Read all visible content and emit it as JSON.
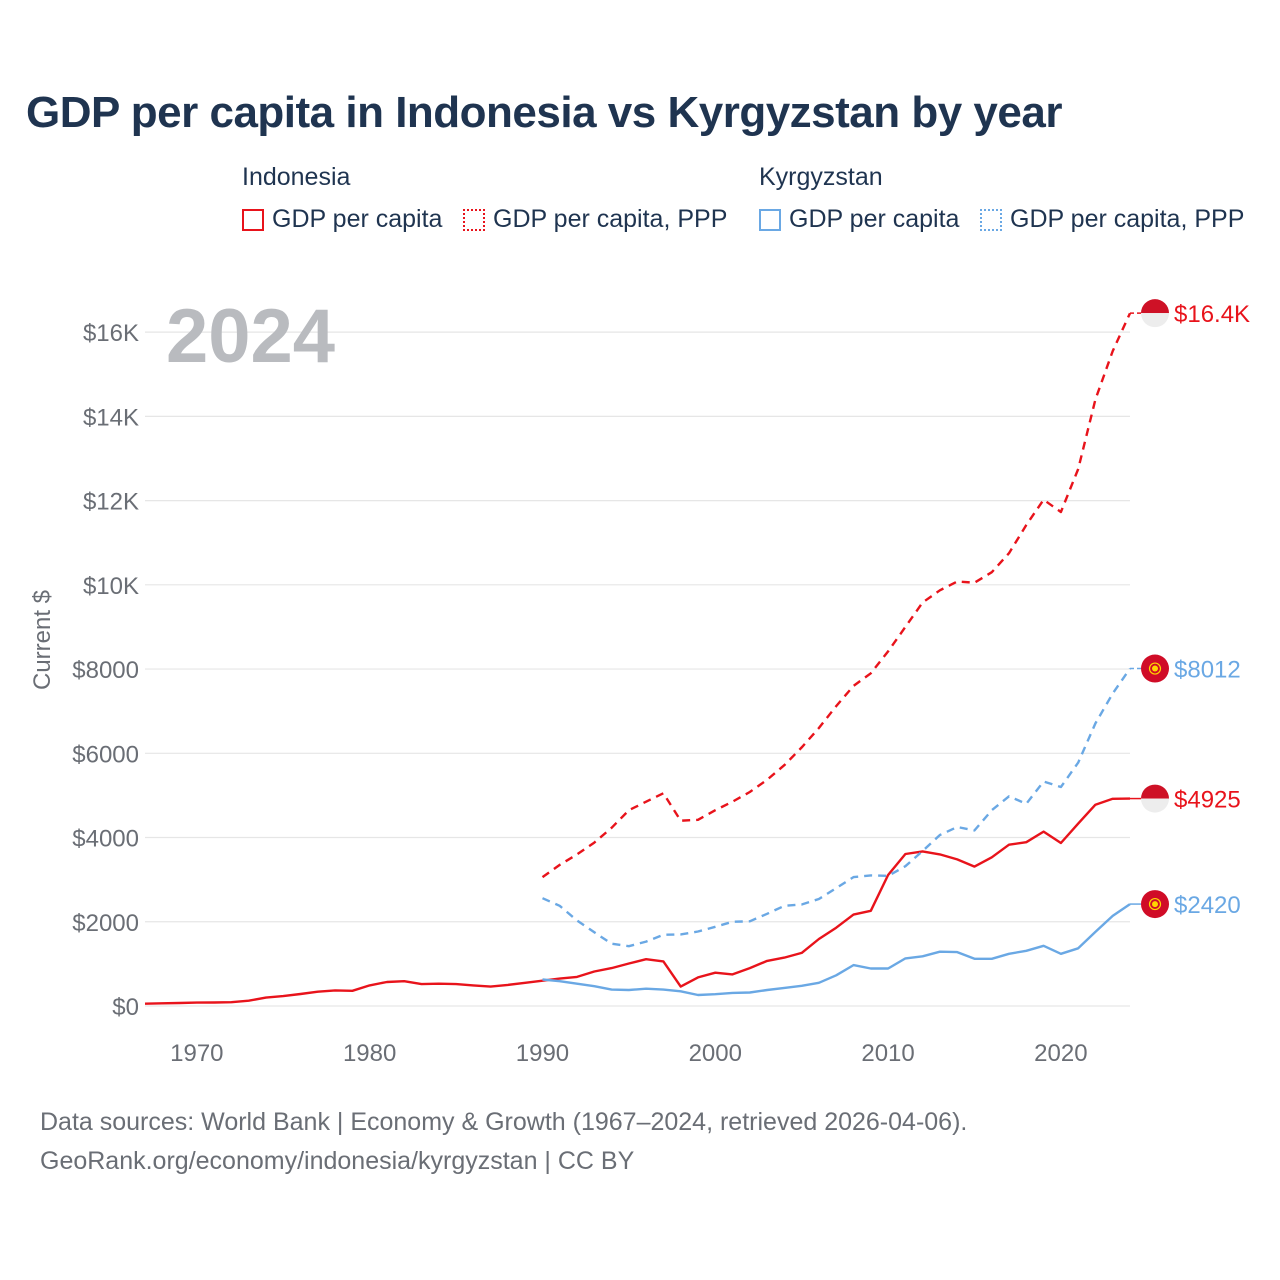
{
  "title": "GDP per capita in Indonesia vs Kyrgyzstan by year",
  "legend": {
    "indonesia": {
      "group": "Indonesia",
      "items": [
        "GDP per capita",
        "GDP per capita, PPP"
      ]
    },
    "kyrgyzstan": {
      "group": "Kyrgyzstan",
      "items": [
        "GDP per capita",
        "GDP per capita, PPP"
      ]
    }
  },
  "colors": {
    "indonesia": "#e8131b",
    "kyrgyzstan": "#6aa8e4",
    "grid": "#e6e6e6",
    "axis_text": "#6a6e75",
    "year_watermark": "#b9bbbf"
  },
  "footer": {
    "line1": "Data sources: World Bank | Economy & Growth (1967–2024, retrieved 2026-04-06).",
    "line2": "GeoRank.org/economy/indonesia/kyrgyzstan | CC BY"
  },
  "chart_data": {
    "type": "line",
    "title": "GDP per capita in Indonesia vs Kyrgyzstan by year",
    "ylabel": "Current $",
    "xlabel": "",
    "year_label": "2024",
    "xlim": [
      1967,
      2024
    ],
    "ylim": [
      0,
      17000
    ],
    "x_ticks": [
      1970,
      1980,
      1990,
      2000,
      2010,
      2020
    ],
    "x_tick_labels": [
      "1970",
      "1980",
      "1990",
      "2000",
      "2010",
      "2020"
    ],
    "y_ticks": [
      0,
      2000,
      4000,
      6000,
      8000,
      10000,
      12000,
      14000,
      16000
    ],
    "y_tick_labels": [
      "$0",
      "$2000",
      "$4000",
      "$6000",
      "$8000",
      "$10K",
      "$12K",
      "$14K",
      "$16K"
    ],
    "series": [
      {
        "name": "Indonesia GDP per capita",
        "country": "Indonesia",
        "style": "solid",
        "color": "#e8131b",
        "end_label": "$4925",
        "x": [
          1967,
          1968,
          1969,
          1970,
          1971,
          1972,
          1973,
          1974,
          1975,
          1976,
          1977,
          1978,
          1979,
          1980,
          1981,
          1982,
          1983,
          1984,
          1985,
          1986,
          1987,
          1988,
          1989,
          1990,
          1991,
          1992,
          1993,
          1994,
          1995,
          1996,
          1997,
          1998,
          1999,
          2000,
          2001,
          2002,
          2003,
          2004,
          2005,
          2006,
          2007,
          2008,
          2009,
          2010,
          2011,
          2012,
          2013,
          2014,
          2015,
          2016,
          2017,
          2018,
          2019,
          2020,
          2021,
          2022,
          2023,
          2024
        ],
        "y": [
          55,
          65,
          72,
          80,
          83,
          90,
          125,
          200,
          235,
          285,
          340,
          370,
          360,
          490,
          570,
          590,
          520,
          530,
          520,
          490,
          460,
          500,
          550,
          600,
          650,
          690,
          820,
          900,
          1010,
          1110,
          1060,
          460,
          680,
          790,
          750,
          900,
          1070,
          1150,
          1260,
          1590,
          1860,
          2170,
          2260,
          3110,
          3610,
          3670,
          3600,
          3480,
          3310,
          3530,
          3830,
          3890,
          4140,
          3870,
          4330,
          4780,
          4920,
          4925
        ]
      },
      {
        "name": "Indonesia GDP per capita, PPP",
        "country": "Indonesia",
        "style": "dashed",
        "color": "#e8131b",
        "end_label": "$16.4K",
        "x": [
          1990,
          1991,
          1992,
          1993,
          1994,
          1995,
          1996,
          1997,
          1998,
          1999,
          2000,
          2001,
          2002,
          2003,
          2004,
          2005,
          2006,
          2007,
          2008,
          2009,
          2010,
          2011,
          2012,
          2013,
          2014,
          2015,
          2016,
          2017,
          2018,
          2019,
          2020,
          2021,
          2022,
          2023,
          2024
        ],
        "y": [
          3060,
          3350,
          3600,
          3880,
          4230,
          4650,
          4850,
          5050,
          4400,
          4420,
          4650,
          4850,
          5080,
          5370,
          5720,
          6140,
          6600,
          7120,
          7600,
          7900,
          8420,
          9000,
          9580,
          9870,
          10080,
          10050,
          10300,
          10750,
          11420,
          12020,
          11730,
          12750,
          14400,
          15550,
          16450
        ]
      },
      {
        "name": "Kyrgyzstan GDP per capita",
        "country": "Kyrgyzstan",
        "style": "solid",
        "color": "#6aa8e4",
        "end_label": "$2420",
        "x": [
          1990,
          1991,
          1992,
          1993,
          1994,
          1995,
          1996,
          1997,
          1998,
          1999,
          2000,
          2001,
          2002,
          2003,
          2004,
          2005,
          2006,
          2007,
          2008,
          2009,
          2010,
          2011,
          2012,
          2013,
          2014,
          2015,
          2016,
          2017,
          2018,
          2019,
          2020,
          2021,
          2022,
          2023,
          2024
        ],
        "y": [
          630,
          590,
          530,
          470,
          390,
          380,
          410,
          390,
          350,
          260,
          280,
          310,
          320,
          380,
          430,
          480,
          550,
          730,
          970,
          890,
          890,
          1130,
          1180,
          1290,
          1280,
          1120,
          1120,
          1240,
          1310,
          1430,
          1240,
          1370,
          1760,
          2140,
          2420
        ]
      },
      {
        "name": "Kyrgyzstan GDP per capita, PPP",
        "country": "Kyrgyzstan",
        "style": "dashed",
        "color": "#6aa8e4",
        "end_label": "$8012",
        "x": [
          1990,
          1991,
          1992,
          1993,
          1994,
          1995,
          1996,
          1997,
          1998,
          1999,
          2000,
          2001,
          2002,
          2003,
          2004,
          2005,
          2006,
          2007,
          2008,
          2009,
          2010,
          2011,
          2012,
          2013,
          2014,
          2015,
          2016,
          2017,
          2018,
          2019,
          2020,
          2021,
          2022,
          2023,
          2024
        ],
        "y": [
          2560,
          2380,
          2030,
          1750,
          1480,
          1420,
          1530,
          1690,
          1700,
          1770,
          1880,
          2000,
          2010,
          2190,
          2380,
          2410,
          2540,
          2800,
          3060,
          3100,
          3090,
          3320,
          3680,
          4060,
          4250,
          4170,
          4650,
          4980,
          4800,
          5330,
          5200,
          5780,
          6710,
          7420,
          8012
        ]
      }
    ]
  }
}
